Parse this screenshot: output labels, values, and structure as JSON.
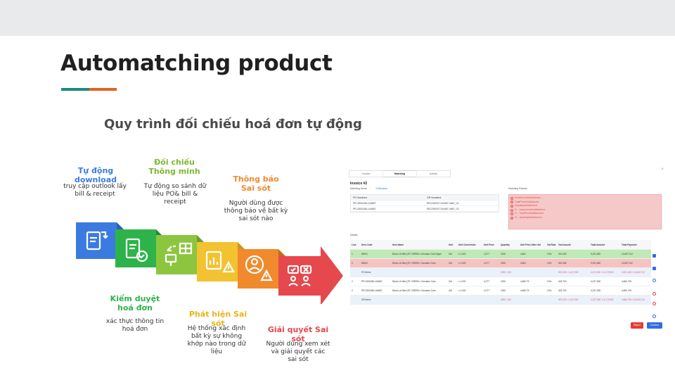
{
  "slide": {
    "title": "Automatching product",
    "accent_colors": [
      "#1f8a82",
      "#e0641f"
    ]
  },
  "process": {
    "title": "Quy trình đối chiếu hoá đơn tự động",
    "steps": [
      {
        "title": "Tự động download",
        "desc": "truy cập outlook lấy bill & receipt",
        "color": "#3b7be0",
        "icon": "document-download-icon"
      },
      {
        "title": "Kiểm duyệt hoá đơn",
        "desc": "xác thực thông tin hoá đơn",
        "color": "#2db34a",
        "icon": "document-check-icon"
      },
      {
        "title": "Đối chiếu Thông minh",
        "desc": "Tự động so sánh dữ liệu PO& bill & receipt",
        "color": "#8cc63f",
        "icon": "compare-data-icon"
      },
      {
        "title": "Phát hiện Sai sót",
        "desc": "Hệ thống xác định bất kỳ sự không khớp nào trong dữ liệu",
        "color": "#f2c230",
        "icon": "chart-warning-icon"
      },
      {
        "title": "Thông báo Sai sót",
        "desc": "Người dùng được thông báo về bất kỳ sai sót nào",
        "color": "#f08a2c",
        "icon": "user-warning-icon"
      },
      {
        "title": "Giải quyết Sai sót",
        "desc": "Người dùng xem xét và giải quyết các sai sót",
        "color": "#e5484d",
        "icon": "resolve-people-icon"
      }
    ]
  },
  "screenshot": {
    "tabs": [
      "Invoice",
      "Matching",
      "Activity"
    ],
    "active_tab": "Matching",
    "invoice_title": "Invoice #2",
    "matching_items_label": "Matching items",
    "rename_label": "Rename",
    "matching_results_label": "Matching Results",
    "matching_items": {
      "headers": [
        "PO Numbers",
        "GR Numbers"
      ],
      "rows": [
        [
          "PR-2500186-144687",
          "REC250207134467-4687_01"
        ],
        [
          "PR-2500186-144687",
          "REC250207134467-4687_02"
        ]
      ]
    },
    "matching_results": [
      "InvoiceLineNotMatched",
      "TotalPriceNotMatched",
      "QuantityNotMatched",
      "G... InvoiceLineNotMatched",
      "G... TotalPriceNotMatched",
      "G... QuantityNotMatched"
    ],
    "details_label": "Details",
    "details": {
      "headers": [
        "Line",
        "Item Code",
        "Item Name",
        "Unit",
        "Unit Conversion",
        "Unit Price",
        "Quantity",
        "Unit Price After Vat",
        "Vat Rate",
        "Vat Amount",
        "Total Amount",
        "Total Payment"
      ],
      "rows": [
        {
          "style": "green",
          "cells": [
            "1",
            "50001",
            "Nhan Lót Mini (ST: GREEN- Cinnabox Cam Ngon",
            "Gói",
            "x 1.020",
            "4,277",
            "2190",
            "4,661",
            "10%",
            "919,182",
            "9,191,820",
            "10,057,112"
          ]
        },
        {
          "style": "red",
          "cells": [
            "2",
            "50002",
            "Nhan Lót Mini (ST: GREEN- Cinnabox Cam",
            "Gói",
            "x 1.020",
            "4,277",
            "2190",
            "4,661",
            "10%",
            "919,182",
            "9,191,820",
            "10,057,112"
          ]
        },
        {
          "style": "sub",
          "cells": [
            "",
            "PO Items",
            "",
            "",
            "",
            "",
            "2000 / 190",
            "",
            "",
            "367,000 / 1,417,902",
            "4,474,900 / 14,175,902",
            "4,521,400 / 15,543,712"
          ]
        },
        {
          "style": "plain",
          "cells": [
            "2",
            "PR-2500186-144687",
            "Nhan Lót Mini (ST: GREEN- Cinnabox Cam",
            "Gói",
            "x 1.020",
            "4,277",
            "1000",
            "4,660.79",
            "10%",
            "423,700",
            "4,237,000",
            "4,660,700"
          ]
        },
        {
          "style": "plain",
          "cells": [
            "2",
            "PR-2500186-144687",
            "Nhan Lót Mini (ST: GREEN- Cinnabox Cam",
            "Gói",
            "x 1.020",
            "4,277",
            "1000",
            "4,660.79",
            "10%",
            "423,700",
            "4,237,000",
            "4,660,700"
          ]
        },
        {
          "style": "sub",
          "cells": [
            "",
            "GR Items",
            "",
            "",
            "",
            "",
            "2000 / 190",
            "",
            "",
            "367,000 / 1,417,902",
            "4,237,000 / 14,175,902",
            "4,660,700 / 15,543,712"
          ]
        }
      ]
    },
    "reject_label": "Reject",
    "confirm_label": "Confirm"
  }
}
